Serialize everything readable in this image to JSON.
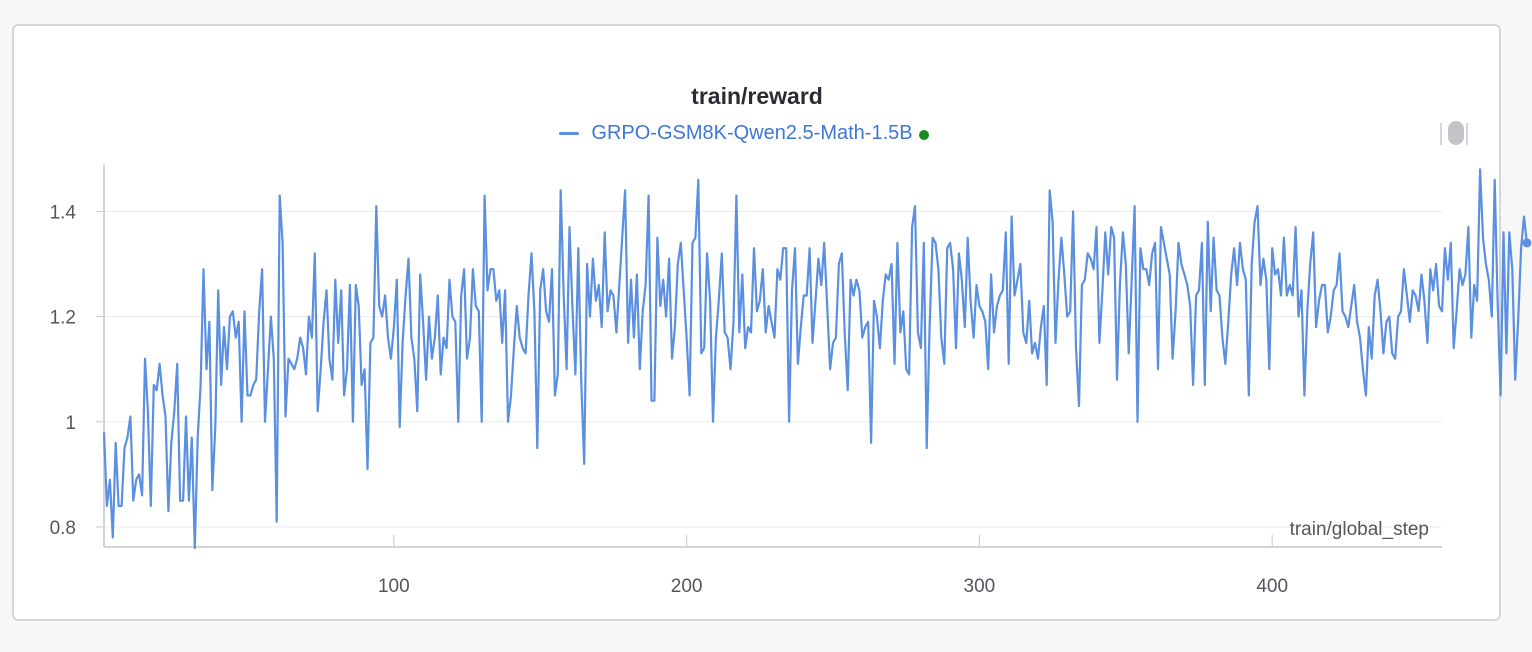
{
  "panel": {
    "title": "train/reward"
  },
  "legend": {
    "series_label": "GRPO-GSM8K-Qwen2.5-Math-1.5B",
    "series_color": "#5b8fe0",
    "status_dot_color": "#1a8a24"
  },
  "chart_data": {
    "type": "line",
    "title": "train/reward",
    "xlabel": "train/global_step",
    "ylabel": "",
    "xlim": [
      1,
      458
    ],
    "ylim": [
      0.762,
      1.49
    ],
    "x_ticks": [
      100,
      200,
      300,
      400
    ],
    "y_ticks": [
      0.8,
      1,
      1.2,
      1.4
    ],
    "y_tick_labels": [
      "0.8",
      "1",
      "1.2",
      "1.4"
    ],
    "grid": true,
    "series": [
      {
        "name": "GRPO-GSM8K-Qwen2.5-Math-1.5B",
        "color": "#5b8fe0",
        "x_start": 1,
        "x_step": 1,
        "values": [
          0.98,
          0.84,
          0.89,
          0.78,
          0.96,
          0.84,
          0.84,
          0.95,
          0.97,
          1.01,
          0.85,
          0.89,
          0.9,
          0.86,
          1.12,
          1.02,
          0.84,
          1.07,
          1.06,
          1.11,
          1.05,
          1.01,
          0.83,
          0.96,
          1.02,
          1.11,
          0.85,
          0.85,
          1.01,
          0.85,
          0.97,
          0.76,
          0.97,
          1.07,
          1.29,
          1.1,
          1.19,
          0.87,
          0.99,
          1.25,
          1.07,
          1.18,
          1.1,
          1.2,
          1.21,
          1.16,
          1.19,
          1.0,
          1.21,
          1.05,
          1.05,
          1.07,
          1.08,
          1.21,
          1.29,
          1.0,
          1.1,
          1.2,
          1.12,
          0.81,
          1.43,
          1.34,
          1.01,
          1.12,
          1.11,
          1.1,
          1.12,
          1.16,
          1.14,
          1.09,
          1.2,
          1.16,
          1.32,
          1.02,
          1.1,
          1.19,
          1.25,
          1.12,
          1.08,
          1.27,
          1.15,
          1.25,
          1.05,
          1.1,
          1.26,
          1.0,
          1.26,
          1.22,
          1.07,
          1.1,
          0.91,
          1.15,
          1.16,
          1.41,
          1.22,
          1.2,
          1.24,
          1.16,
          1.12,
          1.18,
          1.27,
          0.99,
          1.15,
          1.24,
          1.31,
          1.16,
          1.12,
          1.02,
          1.28,
          1.19,
          1.08,
          1.2,
          1.12,
          1.16,
          1.24,
          1.09,
          1.16,
          1.14,
          1.27,
          1.2,
          1.19,
          1.0,
          1.24,
          1.29,
          1.12,
          1.16,
          1.29,
          1.22,
          1.21,
          1.0,
          1.43,
          1.25,
          1.29,
          1.29,
          1.23,
          1.25,
          1.15,
          1.25,
          1.0,
          1.05,
          1.14,
          1.22,
          1.16,
          1.14,
          1.13,
          1.24,
          1.32,
          1.21,
          0.95,
          1.25,
          1.29,
          1.21,
          1.19,
          1.29,
          1.05,
          1.09,
          1.44,
          1.24,
          1.1,
          1.37,
          1.22,
          1.09,
          1.33,
          1.08,
          0.92,
          1.3,
          1.2,
          1.31,
          1.23,
          1.26,
          1.18,
          1.36,
          1.21,
          1.25,
          1.24,
          1.17,
          1.26,
          1.35,
          1.44,
          1.15,
          1.27,
          1.16,
          1.28,
          1.1,
          1.21,
          1.26,
          1.43,
          1.04,
          1.04,
          1.35,
          1.22,
          1.27,
          1.2,
          1.31,
          1.12,
          1.18,
          1.3,
          1.34,
          1.25,
          1.16,
          1.05,
          1.34,
          1.35,
          1.46,
          1.13,
          1.14,
          1.32,
          1.23,
          1.0,
          1.16,
          1.23,
          1.32,
          1.17,
          1.16,
          1.1,
          1.19,
          1.43,
          1.17,
          1.28,
          1.14,
          1.18,
          1.17,
          1.33,
          1.21,
          1.23,
          1.29,
          1.17,
          1.22,
          1.19,
          1.16,
          1.29,
          1.27,
          1.33,
          1.33,
          1.0,
          1.25,
          1.33,
          1.11,
          1.18,
          1.24,
          1.24,
          1.33,
          1.15,
          1.23,
          1.31,
          1.26,
          1.34,
          1.22,
          1.1,
          1.15,
          1.16,
          1.3,
          1.32,
          1.17,
          1.06,
          1.27,
          1.24,
          1.27,
          1.25,
          1.16,
          1.18,
          1.19,
          0.96,
          1.23,
          1.2,
          1.14,
          1.23,
          1.28,
          1.27,
          1.3,
          1.11,
          1.34,
          1.17,
          1.21,
          1.1,
          1.09,
          1.37,
          1.41,
          1.17,
          1.14,
          1.34,
          0.95,
          1.18,
          1.35,
          1.34,
          1.29,
          1.16,
          1.11,
          1.33,
          1.34,
          1.29,
          1.14,
          1.32,
          1.27,
          1.18,
          1.35,
          1.23,
          1.16,
          1.26,
          1.22,
          1.21,
          1.19,
          1.1,
          1.28,
          1.17,
          1.22,
          1.24,
          1.25,
          1.36,
          1.11,
          1.39,
          1.24,
          1.27,
          1.3,
          1.17,
          1.15,
          1.23,
          1.13,
          1.15,
          1.12,
          1.18,
          1.22,
          1.07,
          1.44,
          1.38,
          1.15,
          1.27,
          1.35,
          1.28,
          1.2,
          1.21,
          1.4,
          1.14,
          1.03,
          1.26,
          1.27,
          1.32,
          1.31,
          1.29,
          1.37,
          1.15,
          1.25,
          1.36,
          1.28,
          1.37,
          1.35,
          1.08,
          1.26,
          1.36,
          1.3,
          1.13,
          1.27,
          1.41,
          1.0,
          1.33,
          1.29,
          1.29,
          1.26,
          1.32,
          1.34,
          1.1,
          1.37,
          1.34,
          1.31,
          1.28,
          1.12,
          1.21,
          1.34,
          1.3,
          1.28,
          1.26,
          1.22,
          1.07,
          1.24,
          1.25,
          1.34,
          1.07,
          1.38,
          1.21,
          1.35,
          1.25,
          1.24,
          1.16,
          1.11,
          1.19,
          1.28,
          1.33,
          1.26,
          1.34,
          1.29,
          1.27,
          1.05,
          1.3,
          1.38,
          1.41,
          1.26,
          1.31,
          1.27,
          1.1,
          1.33,
          1.28,
          1.29,
          1.24,
          1.35,
          1.24,
          1.26,
          1.24,
          1.37,
          1.2,
          1.25,
          1.05,
          1.21,
          1.3,
          1.36,
          1.18,
          1.23,
          1.26,
          1.26,
          1.17,
          1.2,
          1.25,
          1.26,
          1.32,
          1.21,
          1.2,
          1.18,
          1.22,
          1.26,
          1.19,
          1.16,
          1.1,
          1.05,
          1.18,
          1.12,
          1.24,
          1.27,
          1.21,
          1.13,
          1.19,
          1.2,
          1.13,
          1.12,
          1.2,
          1.21,
          1.29,
          1.24,
          1.19,
          1.25,
          1.24,
          1.21,
          1.28,
          1.23,
          1.15,
          1.29,
          1.25,
          1.3,
          1.22,
          1.21,
          1.33,
          1.27,
          1.34,
          1.14,
          1.21,
          1.29,
          1.26,
          1.28,
          1.37,
          1.16,
          1.26,
          1.23,
          1.48,
          1.35,
          1.3,
          1.27,
          1.2,
          1.46,
          1.23,
          1.05,
          1.36,
          1.13,
          1.36,
          1.29,
          1.08,
          1.19,
          1.33,
          1.39,
          1.34
        ]
      }
    ],
    "last_value_marker": true
  }
}
